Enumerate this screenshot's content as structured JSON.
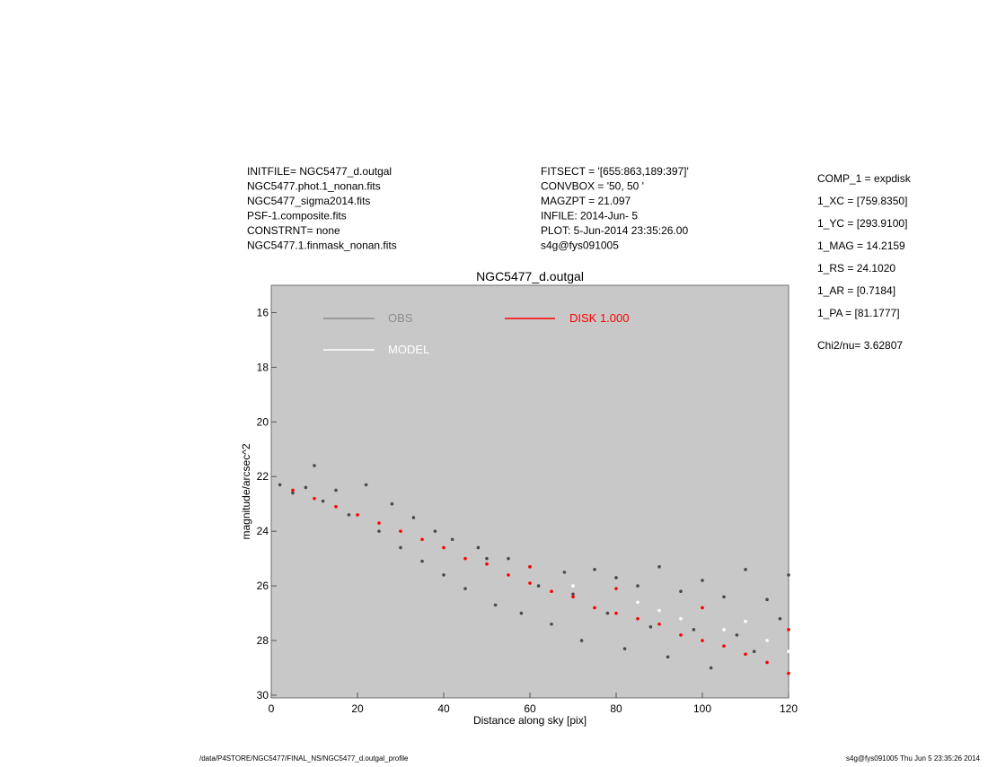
{
  "header": {
    "left": [
      "INITFILE= NGC5477_d.outgal",
      "NGC5477.phot.1_nonan.fits",
      "NGC5477_sigma2014.fits",
      "PSF-1.composite.fits",
      "CONSTRNT= none",
      "NGC5477.1.finmask_nonan.fits"
    ],
    "middle": [
      "FITSECT = '[655:863,189:397]'",
      "CONVBOX = '50, 50  '",
      "MAGZPT  =             21.097",
      "INFILE: 2014-Jun- 5",
      "PLOT:  5-Jun-2014 23:35:26.00",
      "s4g@fys091005"
    ],
    "right": [
      "COMP_1  = expdisk",
      "1_XC    = [759.8350]",
      "1_YC    = [293.9100]",
      "1_MAG   = 14.2159",
      "1_RS    = 24.1020",
      "1_AR    = [0.7184]",
      "1_PA    = [81.1777]",
      "Chi2/nu=     3.62807"
    ]
  },
  "footer": {
    "left": "/data/P4STORE/NGC5477/FINAL_NS/NGC5477_d.outgal_profile",
    "right": "s4g@fys091005  Thu Jun  5 23:35:26 2014"
  },
  "chart_data": {
    "type": "scatter",
    "title": "NGC5477_d.outgal",
    "x_label": "Distance along sky [pix]",
    "y_label": "magnitude/arcsec^2",
    "xlim": [
      0,
      120
    ],
    "xticks": [
      0,
      20,
      40,
      60,
      80,
      100,
      120
    ],
    "ylim": [
      15,
      30.1
    ],
    "yticks": [
      16,
      18,
      20,
      22,
      24,
      26,
      28,
      30
    ],
    "y_inverted": true,
    "background": "#c8c8c8",
    "series": [
      {
        "name": "OBS",
        "color": "#8c8c8c",
        "point_color": "#4a4a4a",
        "x": [
          2,
          5,
          8,
          10,
          12,
          15,
          18,
          22,
          25,
          28,
          30,
          33,
          35,
          38,
          40,
          42,
          45,
          48,
          50,
          52,
          55,
          58,
          60,
          62,
          65,
          68,
          70,
          72,
          75,
          78,
          80,
          82,
          85,
          88,
          90,
          92,
          95,
          98,
          100,
          102,
          105,
          108,
          110,
          112,
          115,
          118,
          120
        ],
        "y": [
          22.3,
          22.6,
          22.4,
          21.6,
          22.9,
          22.5,
          23.4,
          22.3,
          24.0,
          23.0,
          24.6,
          23.5,
          25.1,
          24.0,
          25.6,
          24.3,
          26.1,
          24.6,
          25.0,
          26.7,
          25.0,
          27.0,
          25.3,
          26.0,
          27.4,
          25.5,
          26.3,
          28.0,
          25.4,
          27.0,
          25.7,
          28.3,
          26.0,
          27.5,
          25.3,
          28.6,
          26.2,
          27.6,
          25.8,
          29.0,
          26.4,
          27.8,
          25.4,
          28.4,
          26.5,
          27.2,
          25.6
        ]
      },
      {
        "name": "MODEL",
        "color": "#ffffff",
        "point_color": "#ffffff",
        "x": [
          70,
          85,
          90,
          95,
          105,
          110,
          115,
          120
        ],
        "y": [
          26.0,
          26.6,
          26.9,
          27.2,
          27.6,
          27.3,
          28.0,
          28.4
        ]
      },
      {
        "name": "DISK  1.000",
        "color": "#ff0000",
        "point_color": "#ff0000",
        "x": [
          5,
          10,
          15,
          20,
          25,
          30,
          35,
          40,
          45,
          50,
          55,
          60,
          65,
          70,
          75,
          80,
          85,
          90,
          95,
          100,
          105,
          110,
          115,
          120,
          60,
          80,
          100,
          120
        ],
        "y": [
          22.5,
          22.8,
          23.1,
          23.4,
          23.7,
          24.0,
          24.3,
          24.6,
          25.0,
          25.2,
          25.6,
          25.9,
          26.2,
          26.4,
          26.8,
          27.0,
          27.2,
          27.4,
          27.8,
          28.0,
          28.2,
          28.5,
          28.8,
          29.2,
          25.3,
          26.1,
          26.8,
          27.6
        ]
      }
    ]
  }
}
